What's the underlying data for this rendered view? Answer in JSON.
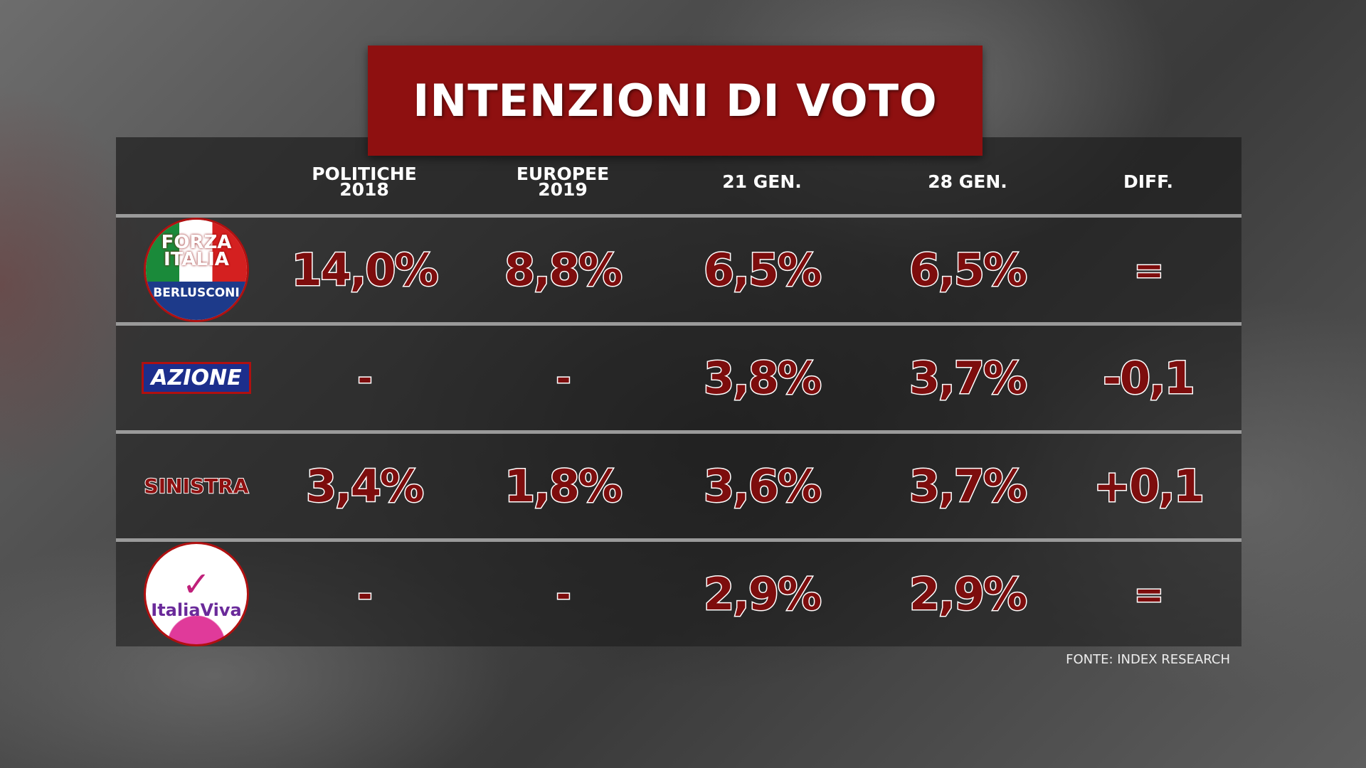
{
  "title": "INTENZIONI DI VOTO",
  "table": {
    "headers": [
      [
        "POLITICHE",
        "2018"
      ],
      [
        "EUROPEE",
        "2019"
      ],
      [
        "21 GEN."
      ],
      [
        "28 GEN."
      ],
      [
        "DIFF."
      ]
    ],
    "rows": [
      {
        "party": [
          "FORZA ITALIA",
          "BERLUSCONI"
        ],
        "logo": "fi",
        "cells": [
          "14,0%",
          "8,8%",
          "6,5%",
          "6,5%",
          "="
        ]
      },
      {
        "party": [
          "AZIONE"
        ],
        "logo": "az",
        "cells": [
          "-",
          "-",
          "3,8%",
          "3,7%",
          "-0,1"
        ]
      },
      {
        "party": [
          "SINISTRA"
        ],
        "logo": "si",
        "cells": [
          "3,4%",
          "1,8%",
          "3,6%",
          "3,7%",
          "+0,1"
        ]
      },
      {
        "party": [
          "ItaliaViva"
        ],
        "logo": "iv",
        "cells": [
          "-",
          "-",
          "2,9%",
          "2,9%",
          "="
        ]
      }
    ]
  },
  "source": "FONTE: INDEX RESEARCH"
}
